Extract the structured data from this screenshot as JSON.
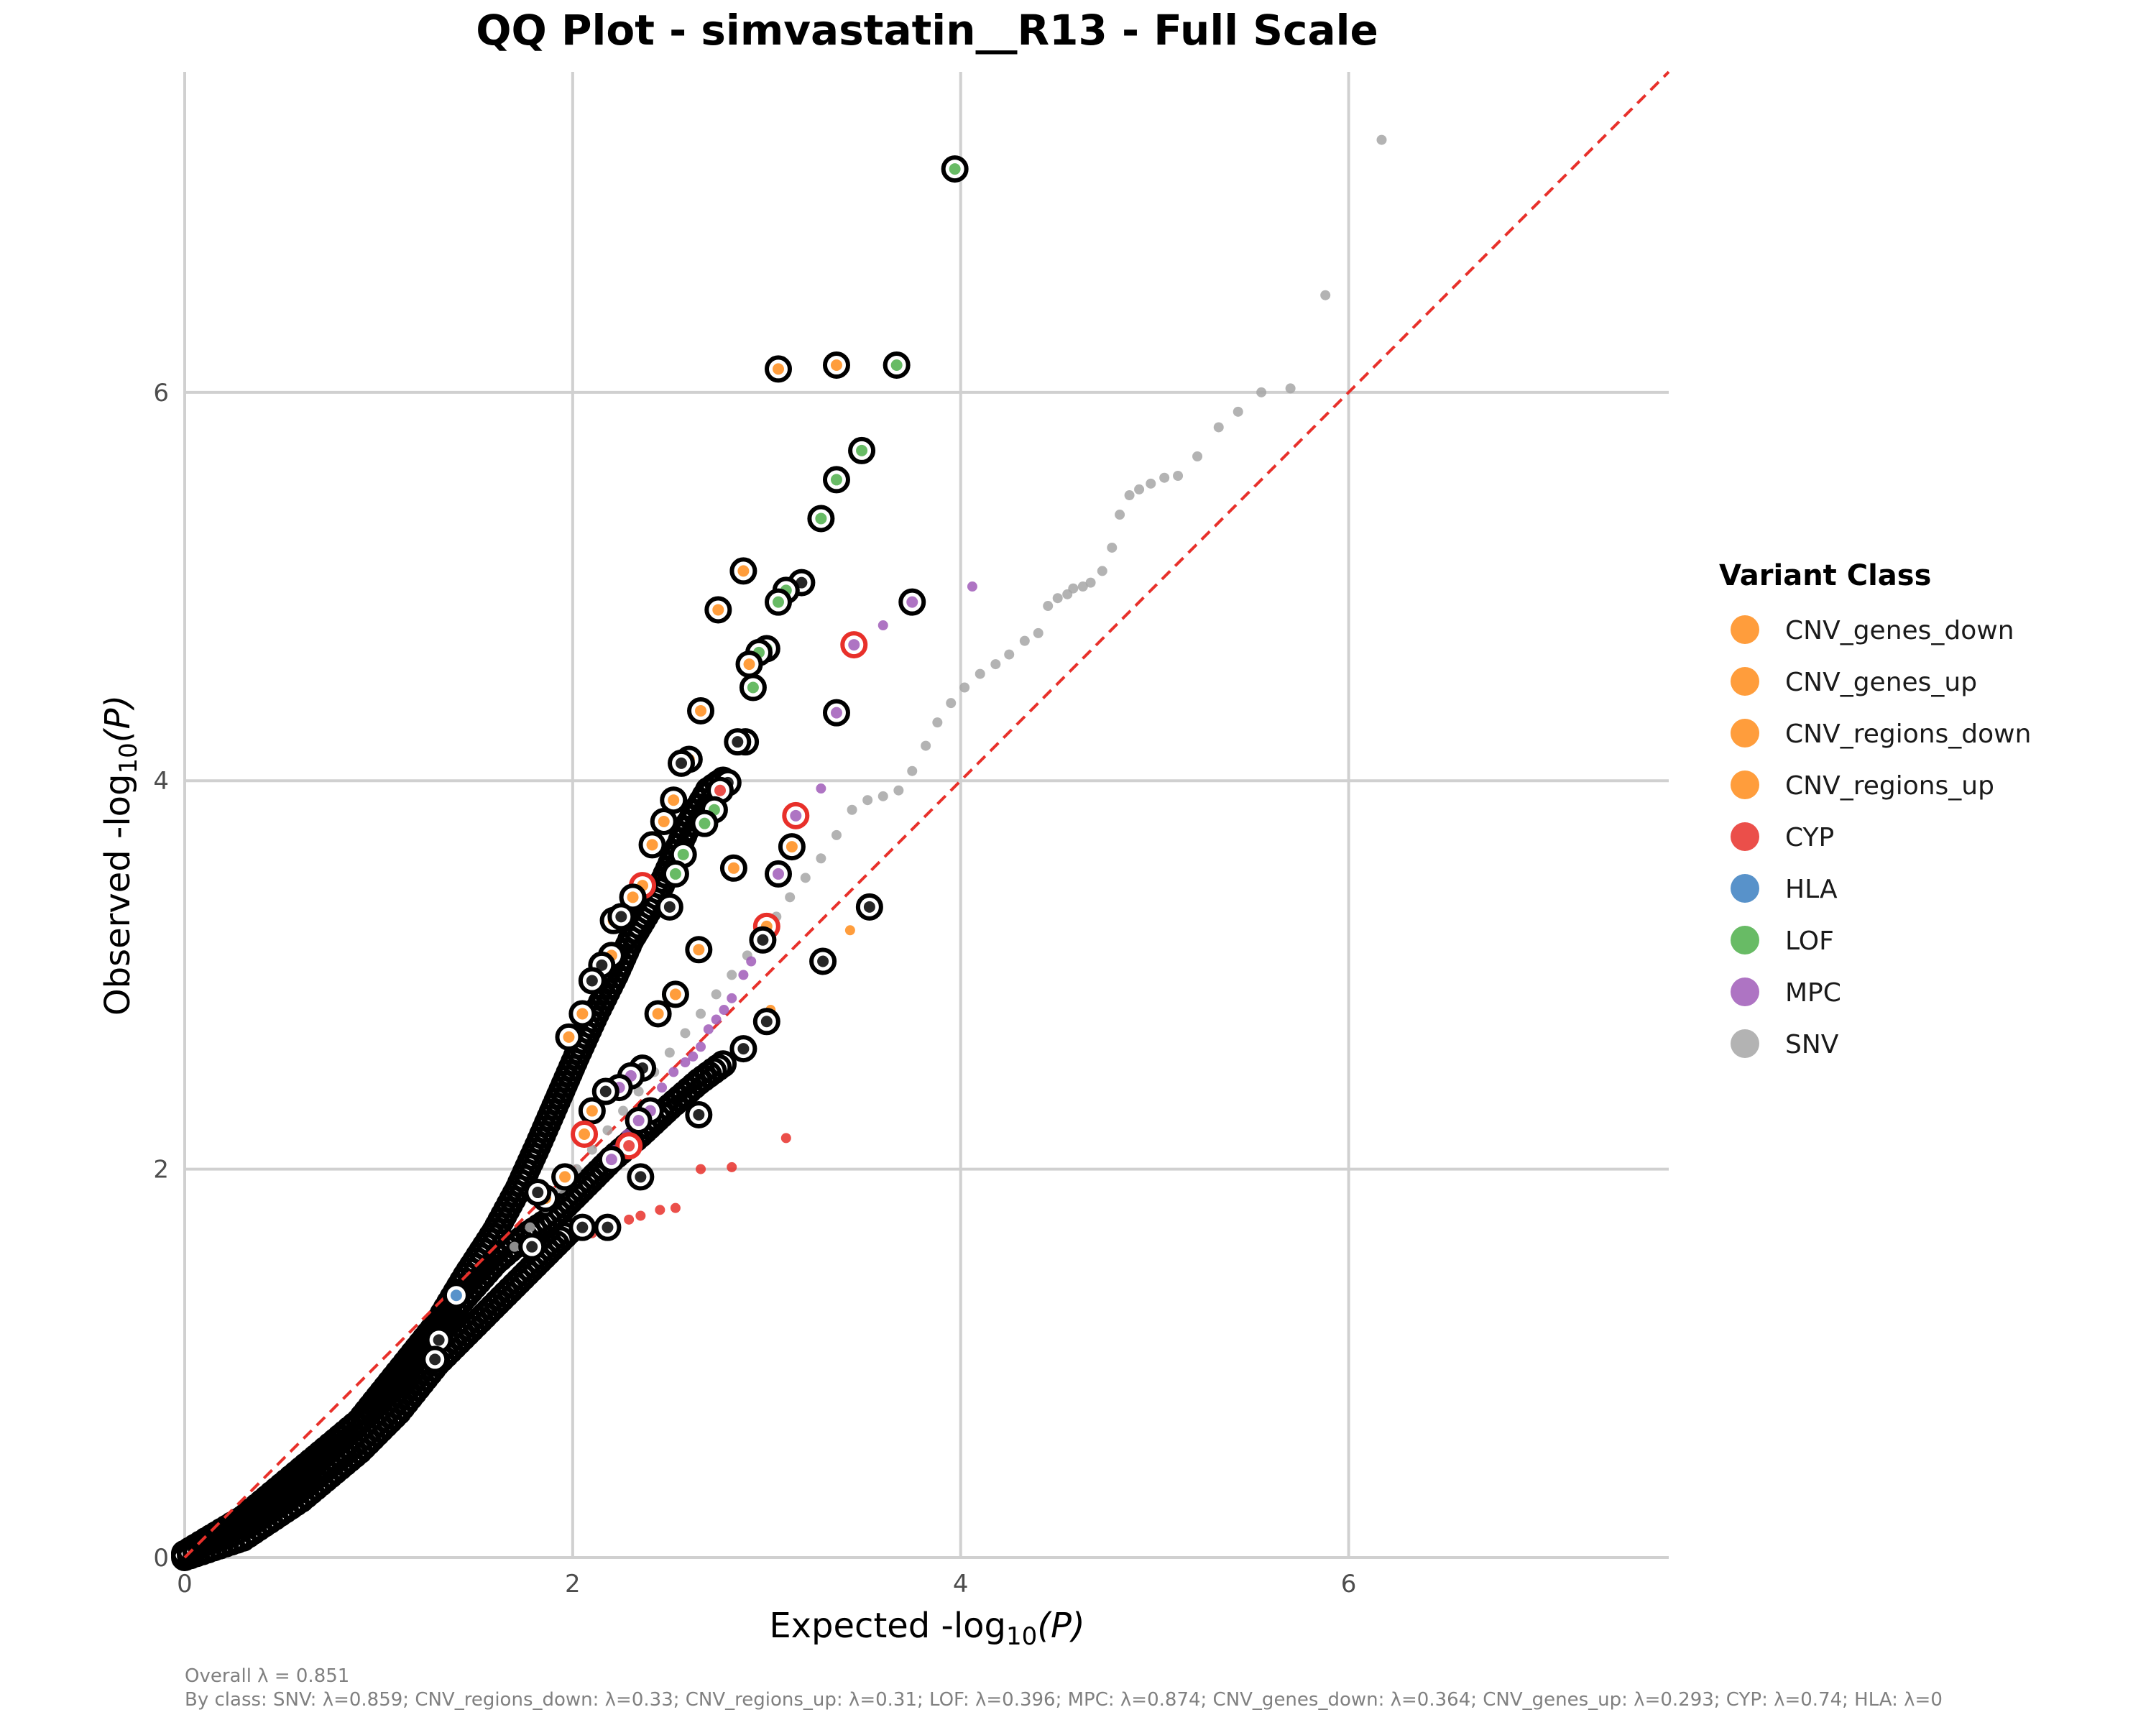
{
  "chart_data": {
    "type": "scatter",
    "title": "QQ Plot - simvastatin__R13 - Full Scale",
    "xlabel": "Expected -log10(P)",
    "ylabel": "Observed -log10(P)",
    "xlabel_prefix": "Expected  -log",
    "ylabel_prefix": "Observed  -log",
    "axis_sub": "10",
    "axis_suffix": "(P)",
    "xlim": [
      0,
      7.65
    ],
    "ylim": [
      0,
      7.65
    ],
    "x_ticks": [
      0,
      2,
      4,
      6
    ],
    "y_ticks": [
      0,
      2,
      4,
      6
    ],
    "x_tick_labels": [
      "0",
      "2",
      "4",
      "6"
    ],
    "y_tick_labels": [
      "0",
      "2",
      "4",
      "6"
    ],
    "grid": true,
    "reference_line": {
      "type": "y=x",
      "color": "#e8302a",
      "style": "dashed"
    },
    "legend": {
      "title": "Variant Class",
      "position": "right",
      "entries": [
        {
          "label": "CNV_genes_down",
          "color": "#ff8c1a"
        },
        {
          "label": "CNV_genes_up",
          "color": "#ff8c1a"
        },
        {
          "label": "CNV_regions_down",
          "color": "#ff8c1a"
        },
        {
          "label": "CNV_regions_up",
          "color": "#ff8c1a"
        },
        {
          "label": "CYP",
          "color": "#e8302a"
        },
        {
          "label": "HLA",
          "color": "#3b7fc1"
        },
        {
          "label": "LOF",
          "color": "#4daf4a"
        },
        {
          "label": "MPC",
          "color": "#a05cb8"
        },
        {
          "label": "SNV",
          "color": "#a6a6a6"
        }
      ]
    },
    "series": [
      {
        "name": "SNV",
        "color": "#a6a6a6",
        "points": [
          [
            6.17,
            7.3
          ],
          [
            5.88,
            6.5
          ],
          [
            5.7,
            6.02
          ],
          [
            5.55,
            6.0
          ],
          [
            5.43,
            5.9
          ],
          [
            5.33,
            5.82
          ],
          [
            5.22,
            5.67
          ],
          [
            5.12,
            5.57
          ],
          [
            5.05,
            5.56
          ],
          [
            4.98,
            5.53
          ],
          [
            4.92,
            5.5
          ],
          [
            4.87,
            5.47
          ],
          [
            4.82,
            5.37
          ],
          [
            4.78,
            5.2
          ],
          [
            4.73,
            5.08
          ],
          [
            4.67,
            5.02
          ],
          [
            4.63,
            5.0
          ],
          [
            4.58,
            4.99
          ],
          [
            4.55,
            4.96
          ],
          [
            4.5,
            4.94
          ],
          [
            4.45,
            4.9
          ],
          [
            4.4,
            4.76
          ],
          [
            4.33,
            4.72
          ],
          [
            4.25,
            4.65
          ],
          [
            4.18,
            4.6
          ],
          [
            4.1,
            4.55
          ],
          [
            4.02,
            4.48
          ],
          [
            3.95,
            4.4
          ],
          [
            3.88,
            4.3
          ],
          [
            3.82,
            4.18
          ],
          [
            3.75,
            4.05
          ],
          [
            3.68,
            3.95
          ],
          [
            3.6,
            3.92
          ],
          [
            3.52,
            3.9
          ],
          [
            3.44,
            3.85
          ],
          [
            3.36,
            3.72
          ],
          [
            3.28,
            3.6
          ],
          [
            3.2,
            3.5
          ],
          [
            3.12,
            3.4
          ],
          [
            3.05,
            3.3
          ],
          [
            2.98,
            3.2
          ],
          [
            2.9,
            3.1
          ],
          [
            2.82,
            3.0
          ],
          [
            2.74,
            2.9
          ],
          [
            2.66,
            2.8
          ],
          [
            2.58,
            2.7
          ],
          [
            2.5,
            2.6
          ],
          [
            2.42,
            2.5
          ],
          [
            2.34,
            2.4
          ],
          [
            2.26,
            2.3
          ],
          [
            2.18,
            2.2
          ],
          [
            2.1,
            2.1
          ],
          [
            2.02,
            2.0
          ],
          [
            1.94,
            1.9
          ],
          [
            1.86,
            1.8
          ],
          [
            1.78,
            1.7
          ],
          [
            1.7,
            1.6
          ]
        ]
      },
      {
        "name": "MPC",
        "color": "#a05cb8",
        "points": [
          [
            4.06,
            5.0
          ],
          [
            3.6,
            4.8
          ],
          [
            3.28,
            3.96
          ],
          [
            3.15,
            3.82
          ],
          [
            3.06,
            3.52
          ],
          [
            2.92,
            3.07
          ],
          [
            2.88,
            3.0
          ],
          [
            2.82,
            2.88
          ],
          [
            2.78,
            2.82
          ],
          [
            2.74,
            2.77
          ],
          [
            2.7,
            2.72
          ],
          [
            2.66,
            2.63
          ],
          [
            2.62,
            2.58
          ],
          [
            2.58,
            2.55
          ],
          [
            2.52,
            2.5
          ],
          [
            2.46,
            2.42
          ],
          [
            2.4,
            2.33
          ],
          [
            2.34,
            2.28
          ],
          [
            2.28,
            2.18
          ],
          [
            2.22,
            2.1
          ]
        ]
      },
      {
        "name": "CYP",
        "color": "#e8302a",
        "points": [
          [
            3.1,
            2.16
          ],
          [
            2.82,
            2.01
          ],
          [
            2.66,
            2.0
          ],
          [
            2.53,
            1.8
          ],
          [
            2.45,
            1.79
          ],
          [
            2.35,
            1.76
          ],
          [
            2.29,
            1.74
          ],
          [
            2.2,
            1.71
          ],
          [
            2.1,
            1.67
          ]
        ]
      },
      {
        "name": "CNV_genes_up",
        "color": "#ff8c1a",
        "points": [
          [
            3.43,
            3.23
          ],
          [
            3.02,
            2.82
          ]
        ]
      }
    ],
    "highlighted": [
      {
        "x": 3.97,
        "y": 7.15,
        "fill": "#4daf4a",
        "ring": "#000000"
      },
      {
        "x": 3.06,
        "y": 6.12,
        "fill": "#ff8c1a",
        "ring": "#000000"
      },
      {
        "x": 3.36,
        "y": 6.14,
        "fill": "#ff8c1a",
        "ring": "#000000"
      },
      {
        "x": 3.67,
        "y": 6.14,
        "fill": "#4daf4a",
        "ring": "#000000"
      },
      {
        "x": 3.49,
        "y": 5.7,
        "fill": "#4daf4a",
        "ring": "#000000"
      },
      {
        "x": 3.36,
        "y": 5.55,
        "fill": "#4daf4a",
        "ring": "#000000"
      },
      {
        "x": 3.28,
        "y": 5.35,
        "fill": "#4daf4a",
        "ring": "#000000"
      },
      {
        "x": 2.88,
        "y": 5.08,
        "fill": "#ff8c1a",
        "ring": "#000000"
      },
      {
        "x": 3.18,
        "y": 5.02,
        "fill": "#000000",
        "ring": "#000000"
      },
      {
        "x": 3.1,
        "y": 4.98,
        "fill": "#4daf4a",
        "ring": "#000000"
      },
      {
        "x": 3.06,
        "y": 4.92,
        "fill": "#4daf4a",
        "ring": "#000000"
      },
      {
        "x": 2.75,
        "y": 4.88,
        "fill": "#ff8c1a",
        "ring": "#000000"
      },
      {
        "x": 3.75,
        "y": 4.92,
        "fill": "#a05cb8",
        "ring": "#000000"
      },
      {
        "x": 3.45,
        "y": 4.7,
        "fill": "#a05cb8",
        "ring": "#e8302a"
      },
      {
        "x": 3.0,
        "y": 4.68,
        "fill": "#4daf4a",
        "ring": "#000000"
      },
      {
        "x": 2.96,
        "y": 4.66,
        "fill": "#4daf4a",
        "ring": "#000000"
      },
      {
        "x": 2.91,
        "y": 4.6,
        "fill": "#ff8c1a",
        "ring": "#000000"
      },
      {
        "x": 2.93,
        "y": 4.48,
        "fill": "#4daf4a",
        "ring": "#000000"
      },
      {
        "x": 2.66,
        "y": 4.36,
        "fill": "#ff8c1a",
        "ring": "#000000"
      },
      {
        "x": 3.36,
        "y": 4.35,
        "fill": "#a05cb8",
        "ring": "#000000"
      },
      {
        "x": 2.89,
        "y": 4.2,
        "fill": "#4daf4a",
        "ring": "#000000"
      },
      {
        "x": 2.85,
        "y": 4.2,
        "fill": "#000000",
        "ring": "#000000"
      },
      {
        "x": 2.6,
        "y": 4.11,
        "fill": "#ff8c1a",
        "ring": "#000000"
      },
      {
        "x": 2.56,
        "y": 4.09,
        "fill": "#000000",
        "ring": "#000000"
      },
      {
        "x": 2.8,
        "y": 3.99,
        "fill": "#000000",
        "ring": "#000000"
      },
      {
        "x": 2.76,
        "y": 3.95,
        "fill": "#e8302a",
        "ring": "#000000"
      },
      {
        "x": 2.52,
        "y": 3.9,
        "fill": "#ff8c1a",
        "ring": "#000000"
      },
      {
        "x": 2.73,
        "y": 3.85,
        "fill": "#4daf4a",
        "ring": "#000000"
      },
      {
        "x": 3.15,
        "y": 3.82,
        "fill": "#a05cb8",
        "ring": "#e8302a"
      },
      {
        "x": 2.47,
        "y": 3.79,
        "fill": "#ff8c1a",
        "ring": "#000000"
      },
      {
        "x": 2.68,
        "y": 3.78,
        "fill": "#4daf4a",
        "ring": "#000000"
      },
      {
        "x": 2.41,
        "y": 3.67,
        "fill": "#ff8c1a",
        "ring": "#000000"
      },
      {
        "x": 3.13,
        "y": 3.66,
        "fill": "#ff8c1a",
        "ring": "#000000"
      },
      {
        "x": 2.57,
        "y": 3.62,
        "fill": "#4daf4a",
        "ring": "#000000"
      },
      {
        "x": 2.83,
        "y": 3.55,
        "fill": "#ff8c1a",
        "ring": "#000000"
      },
      {
        "x": 3.06,
        "y": 3.52,
        "fill": "#a05cb8",
        "ring": "#000000"
      },
      {
        "x": 2.53,
        "y": 3.52,
        "fill": "#4daf4a",
        "ring": "#000000"
      },
      {
        "x": 2.36,
        "y": 3.46,
        "fill": "#ff8c1a",
        "ring": "#e8302a"
      },
      {
        "x": 2.31,
        "y": 3.4,
        "fill": "#ff8c1a",
        "ring": "#000000"
      },
      {
        "x": 2.5,
        "y": 3.35,
        "fill": "#000000",
        "ring": "#000000"
      },
      {
        "x": 2.21,
        "y": 3.28,
        "fill": "#ff8c1a",
        "ring": "#000000"
      },
      {
        "x": 2.25,
        "y": 3.3,
        "fill": "#000000",
        "ring": "#000000"
      },
      {
        "x": 3.0,
        "y": 3.25,
        "fill": "#ff8c1a",
        "ring": "#e8302a"
      },
      {
        "x": 2.98,
        "y": 3.18,
        "fill": "#000000",
        "ring": "#000000"
      },
      {
        "x": 2.65,
        "y": 3.13,
        "fill": "#ff8c1a",
        "ring": "#000000"
      },
      {
        "x": 2.2,
        "y": 3.1,
        "fill": "#ff8c1a",
        "ring": "#000000"
      },
      {
        "x": 2.15,
        "y": 3.05,
        "fill": "#000000",
        "ring": "#000000"
      },
      {
        "x": 3.53,
        "y": 3.35,
        "fill": "#000000",
        "ring": "#000000"
      },
      {
        "x": 3.29,
        "y": 3.07,
        "fill": "#000000",
        "ring": "#000000"
      },
      {
        "x": 2.1,
        "y": 2.97,
        "fill": "#000000",
        "ring": "#000000"
      },
      {
        "x": 2.53,
        "y": 2.9,
        "fill": "#ff8c1a",
        "ring": "#000000"
      },
      {
        "x": 2.05,
        "y": 2.8,
        "fill": "#ff8c1a",
        "ring": "#000000"
      },
      {
        "x": 2.44,
        "y": 2.8,
        "fill": "#ff8c1a",
        "ring": "#000000"
      },
      {
        "x": 3.0,
        "y": 2.76,
        "fill": "#000000",
        "ring": "#000000"
      },
      {
        "x": 1.98,
        "y": 2.68,
        "fill": "#ff8c1a",
        "ring": "#000000"
      },
      {
        "x": 2.88,
        "y": 2.62,
        "fill": "#000000",
        "ring": "#000000"
      },
      {
        "x": 2.36,
        "y": 2.52,
        "fill": "#000000",
        "ring": "#000000"
      },
      {
        "x": 2.3,
        "y": 2.48,
        "fill": "#a05cb8",
        "ring": "#000000"
      },
      {
        "x": 2.24,
        "y": 2.42,
        "fill": "#a05cb8",
        "ring": "#000000"
      },
      {
        "x": 2.17,
        "y": 2.4,
        "fill": "#000000",
        "ring": "#000000"
      },
      {
        "x": 2.1,
        "y": 2.3,
        "fill": "#ff8c1a",
        "ring": "#000000"
      },
      {
        "x": 2.4,
        "y": 2.3,
        "fill": "#a05cb8",
        "ring": "#000000"
      },
      {
        "x": 2.65,
        "y": 2.28,
        "fill": "#000000",
        "ring": "#000000"
      },
      {
        "x": 2.34,
        "y": 2.25,
        "fill": "#a05cb8",
        "ring": "#000000"
      },
      {
        "x": 2.06,
        "y": 2.18,
        "fill": "#ff8c1a",
        "ring": "#e8302a"
      },
      {
        "x": 2.29,
        "y": 2.12,
        "fill": "#e8302a",
        "ring": "#e8302a"
      },
      {
        "x": 2.2,
        "y": 2.05,
        "fill": "#a05cb8",
        "ring": "#000000"
      },
      {
        "x": 2.35,
        "y": 1.96,
        "fill": "#000000",
        "ring": "#000000"
      },
      {
        "x": 1.96,
        "y": 1.96,
        "fill": "#ff8c1a",
        "ring": "#000000"
      },
      {
        "x": 1.86,
        "y": 1.85,
        "fill": "#ff8c1a",
        "ring": "#000000"
      },
      {
        "x": 1.82,
        "y": 1.88,
        "fill": "#000000",
        "ring": "#000000"
      },
      {
        "x": 2.18,
        "y": 1.7,
        "fill": "#000000",
        "ring": "#000000"
      },
      {
        "x": 2.05,
        "y": 1.7,
        "fill": "#000000",
        "ring": "#000000"
      },
      {
        "x": 1.79,
        "y": 1.6,
        "fill": "#000000",
        "ring": "#000000"
      },
      {
        "x": 1.31,
        "y": 1.12,
        "fill": "#000000",
        "ring": "#000000"
      },
      {
        "x": 1.29,
        "y": 1.02,
        "fill": "#000000",
        "ring": "#000000"
      },
      {
        "x": 1.4,
        "y": 1.35,
        "fill": "#3b7fc1",
        "ring": "#000000"
      }
    ],
    "dense_curves": [
      {
        "name": "inflated",
        "points": [
          [
            0,
            0.02
          ],
          [
            0.3,
            0.2
          ],
          [
            0.6,
            0.45
          ],
          [
            0.9,
            0.7
          ],
          [
            1.1,
            0.95
          ],
          [
            1.3,
            1.2
          ],
          [
            1.45,
            1.45
          ],
          [
            1.6,
            1.68
          ],
          [
            1.72,
            1.9
          ],
          [
            1.82,
            2.12
          ],
          [
            1.92,
            2.35
          ],
          [
            2.02,
            2.58
          ],
          [
            2.12,
            2.8
          ],
          [
            2.22,
            3.0
          ],
          [
            2.3,
            3.18
          ],
          [
            2.42,
            3.38
          ],
          [
            2.52,
            3.6
          ],
          [
            2.6,
            3.78
          ],
          [
            2.7,
            3.95
          ],
          [
            2.8,
            4.02
          ]
        ]
      },
      {
        "name": "main",
        "points": [
          [
            0,
            0.02
          ],
          [
            0.3,
            0.18
          ],
          [
            0.6,
            0.42
          ],
          [
            0.9,
            0.7
          ],
          [
            1.1,
            0.9
          ],
          [
            1.3,
            1.18
          ],
          [
            1.45,
            1.35
          ],
          [
            1.6,
            1.52
          ],
          [
            1.75,
            1.65
          ],
          [
            1.9,
            1.75
          ],
          [
            2.05,
            1.9
          ],
          [
            2.2,
            2.05
          ],
          [
            2.35,
            2.18
          ],
          [
            2.5,
            2.32
          ],
          [
            2.65,
            2.45
          ],
          [
            2.8,
            2.56
          ]
        ]
      },
      {
        "name": "deflated",
        "points": [
          [
            0,
            0.0
          ],
          [
            0.3,
            0.1
          ],
          [
            0.6,
            0.3
          ],
          [
            0.9,
            0.55
          ],
          [
            1.1,
            0.75
          ],
          [
            1.3,
            1.0
          ],
          [
            1.5,
            1.2
          ],
          [
            1.7,
            1.4
          ],
          [
            1.85,
            1.55
          ],
          [
            2.0,
            1.7
          ]
        ]
      }
    ]
  },
  "caption": {
    "line1": "Overall λ = 0.851",
    "line2": "By class: SNV: λ=0.859; CNV_regions_down: λ=0.33; CNV_regions_up: λ=0.31; LOF: λ=0.396; MPC: λ=0.874; CNV_genes_down: λ=0.364; CNV_genes_up: λ=0.293; CYP: λ=0.74; HLA: λ=0"
  }
}
